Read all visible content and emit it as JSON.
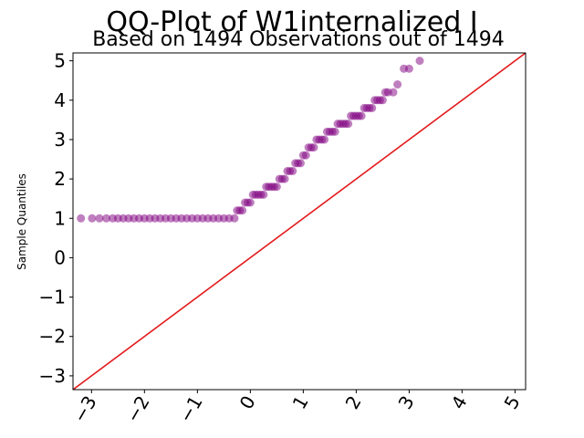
{
  "chart_data": {
    "type": "scatter",
    "title": "QQ-Plot of W1internalized I",
    "subtitle": "Based on 1494 Observations out of 1494",
    "xlabel": "",
    "ylabel": "Sample Quantiles",
    "xlim": [
      -3.35,
      5.2
    ],
    "ylim": [
      -3.35,
      5.2
    ],
    "x_ticks": [
      -3,
      -2,
      -1,
      0,
      1,
      2,
      3,
      4,
      5
    ],
    "x_tick_labels": [
      "−3",
      "−2",
      "−1",
      "0",
      "1",
      "2",
      "3",
      "4",
      "5"
    ],
    "y_ticks": [
      -3,
      -2,
      -1,
      0,
      1,
      2,
      3,
      4,
      5
    ],
    "y_tick_labels": [
      "−3",
      "−2",
      "−1",
      "0",
      "1",
      "2",
      "3",
      "4",
      "5"
    ],
    "grid": false,
    "point_color": "#800080",
    "line_color": "#e31a1c",
    "reference_line": {
      "slope": 1,
      "intercept": 0
    },
    "series": [
      {
        "x": [
          -3.2,
          -2.99,
          -2.85,
          -2.72,
          -2.6,
          -2.5,
          -2.4,
          -2.3,
          -2.2,
          -2.1,
          -2.0,
          -1.9,
          -1.8,
          -1.7,
          -1.6,
          -1.5,
          -1.4,
          -1.3,
          -1.2,
          -1.1,
          -1.0,
          -0.9,
          -0.8,
          -0.7,
          -0.6,
          -0.5,
          -0.4,
          -0.3,
          -0.25,
          -0.2,
          -0.15,
          -0.1,
          -0.05,
          0.0,
          0.05,
          0.1,
          0.15,
          0.2,
          0.25,
          0.3,
          0.35,
          0.4,
          0.45,
          0.5,
          0.55,
          0.6,
          0.65,
          0.7,
          0.75,
          0.8,
          0.85,
          0.9,
          0.95,
          1.0,
          1.05,
          1.1,
          1.15,
          1.2,
          1.25,
          1.3,
          1.35,
          1.4,
          1.45,
          1.5,
          1.55,
          1.6,
          1.65,
          1.7,
          1.75,
          1.8,
          1.85,
          1.9,
          1.95,
          2.0,
          2.05,
          2.1,
          2.15,
          2.2,
          2.25,
          2.3,
          2.35,
          2.4,
          2.45,
          2.5,
          2.55,
          2.6,
          2.7,
          2.78,
          2.9,
          3.0,
          3.2
        ],
        "y": [
          1.0,
          1.0,
          1.0,
          1.0,
          1.0,
          1.0,
          1.0,
          1.0,
          1.0,
          1.0,
          1.0,
          1.0,
          1.0,
          1.0,
          1.0,
          1.0,
          1.0,
          1.0,
          1.0,
          1.0,
          1.0,
          1.0,
          1.0,
          1.0,
          1.0,
          1.0,
          1.0,
          1.0,
          1.2,
          1.2,
          1.2,
          1.4,
          1.4,
          1.4,
          1.6,
          1.6,
          1.6,
          1.6,
          1.6,
          1.8,
          1.8,
          1.8,
          1.8,
          1.8,
          2.0,
          2.0,
          2.0,
          2.2,
          2.2,
          2.2,
          2.4,
          2.4,
          2.4,
          2.6,
          2.6,
          2.8,
          2.8,
          2.8,
          3.0,
          3.0,
          3.0,
          3.0,
          3.2,
          3.2,
          3.2,
          3.2,
          3.4,
          3.4,
          3.4,
          3.4,
          3.4,
          3.6,
          3.6,
          3.6,
          3.6,
          3.6,
          3.8,
          3.8,
          3.8,
          3.8,
          4.0,
          4.0,
          4.0,
          4.0,
          4.2,
          4.2,
          4.2,
          4.4,
          4.8,
          4.8,
          5.0
        ]
      }
    ]
  }
}
